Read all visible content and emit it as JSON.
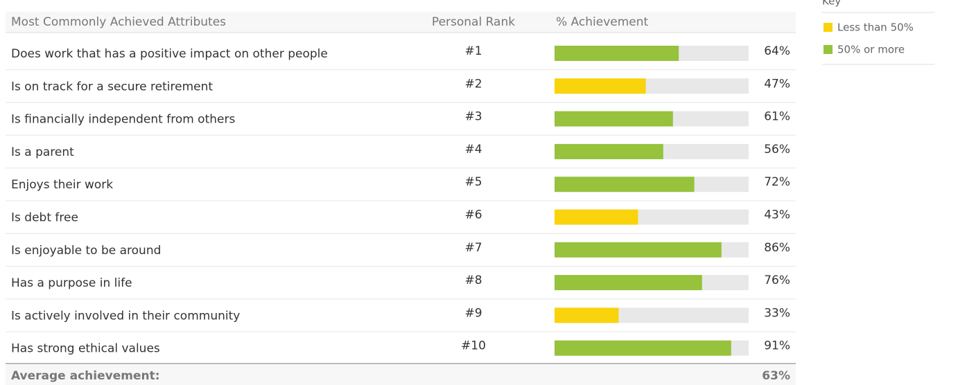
{
  "header": {
    "attribute": "Most Commonly Achieved Attributes",
    "rank": "Personal Rank",
    "achievement": "% Achievement"
  },
  "xlim": [
    0,
    100
  ],
  "rows": [
    {
      "attribute": "Does work that has a positive impact on other people",
      "rank": "#1",
      "value": 64,
      "value_label": "64%"
    },
    {
      "attribute": "Is on track for a secure retirement",
      "rank": "#2",
      "value": 47,
      "value_label": "47%"
    },
    {
      "attribute": "Is financially independent from others",
      "rank": "#3",
      "value": 61,
      "value_label": "61%"
    },
    {
      "attribute": "Is a parent",
      "rank": "#4",
      "value": 56,
      "value_label": "56%"
    },
    {
      "attribute": "Enjoys their work",
      "rank": "#5",
      "value": 72,
      "value_label": "72%"
    },
    {
      "attribute": "Is debt free",
      "rank": "#6",
      "value": 43,
      "value_label": "43%"
    },
    {
      "attribute": "Is enjoyable to be around",
      "rank": "#7",
      "value": 86,
      "value_label": "86%"
    },
    {
      "attribute": "Has a purpose in life",
      "rank": "#8",
      "value": 76,
      "value_label": "76%"
    },
    {
      "attribute": "Is actively involved in their community",
      "rank": "#9",
      "value": 33,
      "value_label": "33%"
    },
    {
      "attribute": "Has strong ethical values",
      "rank": "#10",
      "value": 91,
      "value_label": "91%"
    }
  ],
  "average": {
    "label": "Average achievement:",
    "value": 63,
    "value_label": "63%"
  },
  "key": {
    "title": "Key",
    "threshold": 50,
    "items": [
      {
        "label": "Less than 50%",
        "color": "#f9d30b"
      },
      {
        "label": "50% or more",
        "color": "#96c23c"
      }
    ]
  }
}
